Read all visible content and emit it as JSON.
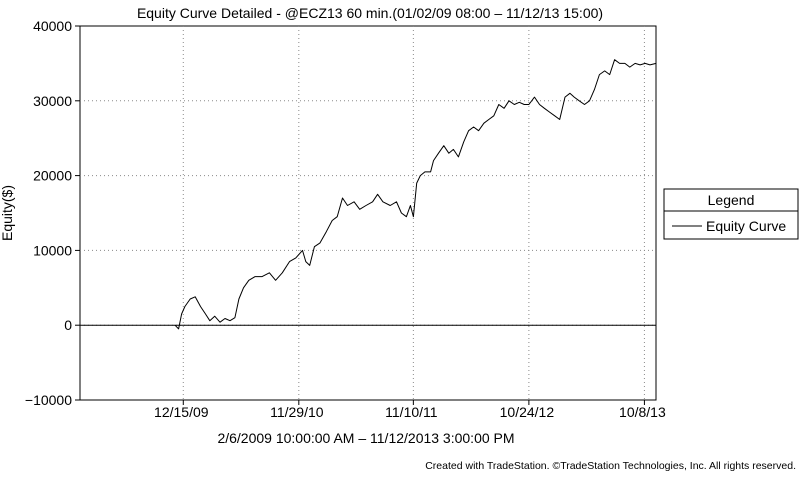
{
  "chart_data": {
    "type": "line",
    "title": "Equity Curve Detailed - @ECZ13 60 min.(01/02/09 08:00 – 11/12/13 15:00)",
    "subtitle": "2/6/2009 10:00:00 AM – 11/12/2013 3:00:00 PM",
    "footer": "Created with TradeStation. ©TradeStation Technologies, Inc. All rights reserved.",
    "xlabel": "",
    "ylabel": "Equity($)",
    "ylim": [
      -10000,
      40000
    ],
    "yticks": [
      -10000,
      0,
      10000,
      20000,
      30000,
      40000
    ],
    "ytick_labels": [
      "−10000",
      "0",
      "10000",
      "20000",
      "30000",
      "40000"
    ],
    "xlim": [
      "2009-02-06",
      "2013-11-12"
    ],
    "xticks": [
      "2009-12-15",
      "2010-11-29",
      "2011-11-10",
      "2012-10-24",
      "2013-10-08"
    ],
    "xtick_labels": [
      "12/15/09",
      "11/29/10",
      "11/10/11",
      "10/24/12",
      "10/8/13"
    ],
    "grid": true,
    "grid_style": "dotted",
    "legend": {
      "title": "Legend",
      "entries": [
        "Equity Curve"
      ],
      "placement": "right"
    },
    "series": [
      {
        "name": "Equity Curve",
        "color": "#000000",
        "points": [
          [
            "2009-11-20",
            0
          ],
          [
            "2009-12-01",
            -500
          ],
          [
            "2009-12-10",
            1500
          ],
          [
            "2009-12-20",
            2500
          ],
          [
            "2010-01-05",
            3500
          ],
          [
            "2010-01-20",
            3800
          ],
          [
            "2010-02-05",
            2500
          ],
          [
            "2010-02-20",
            1500
          ],
          [
            "2010-03-05",
            600
          ],
          [
            "2010-03-20",
            1200
          ],
          [
            "2010-04-05",
            400
          ],
          [
            "2010-04-20",
            900
          ],
          [
            "2010-05-05",
            600
          ],
          [
            "2010-05-20",
            1000
          ],
          [
            "2010-06-01",
            3500
          ],
          [
            "2010-06-15",
            5000
          ],
          [
            "2010-07-01",
            6000
          ],
          [
            "2010-07-20",
            6500
          ],
          [
            "2010-08-10",
            6500
          ],
          [
            "2010-09-01",
            7000
          ],
          [
            "2010-09-20",
            6000
          ],
          [
            "2010-10-10",
            7000
          ],
          [
            "2010-11-01",
            8500
          ],
          [
            "2010-11-20",
            9000
          ],
          [
            "2010-12-10",
            10000
          ],
          [
            "2010-12-20",
            8500
          ],
          [
            "2011-01-01",
            8000
          ],
          [
            "2011-01-15",
            10500
          ],
          [
            "2011-02-01",
            11000
          ],
          [
            "2011-02-20",
            12500
          ],
          [
            "2011-03-10",
            14000
          ],
          [
            "2011-03-25",
            14500
          ],
          [
            "2011-04-10",
            17000
          ],
          [
            "2011-04-25",
            16000
          ],
          [
            "2011-05-15",
            16500
          ],
          [
            "2011-06-01",
            15500
          ],
          [
            "2011-06-20",
            16000
          ],
          [
            "2011-07-10",
            16500
          ],
          [
            "2011-07-25",
            17500
          ],
          [
            "2011-08-10",
            16500
          ],
          [
            "2011-09-01",
            16000
          ],
          [
            "2011-09-20",
            16500
          ],
          [
            "2011-10-05",
            15000
          ],
          [
            "2011-10-20",
            14500
          ],
          [
            "2011-11-01",
            16000
          ],
          [
            "2011-11-10",
            14500
          ],
          [
            "2011-11-20",
            19000
          ],
          [
            "2011-12-01",
            20000
          ],
          [
            "2011-12-15",
            20500
          ],
          [
            "2012-01-01",
            20500
          ],
          [
            "2012-01-10",
            22000
          ],
          [
            "2012-01-25",
            23000
          ],
          [
            "2012-02-10",
            24000
          ],
          [
            "2012-02-25",
            23000
          ],
          [
            "2012-03-10",
            23500
          ],
          [
            "2012-03-25",
            22500
          ],
          [
            "2012-04-10",
            24500
          ],
          [
            "2012-04-25",
            26000
          ],
          [
            "2012-05-10",
            26500
          ],
          [
            "2012-05-25",
            26000
          ],
          [
            "2012-06-10",
            27000
          ],
          [
            "2012-06-25",
            27500
          ],
          [
            "2012-07-10",
            28000
          ],
          [
            "2012-07-25",
            29500
          ],
          [
            "2012-08-10",
            29000
          ],
          [
            "2012-08-25",
            30000
          ],
          [
            "2012-09-10",
            29500
          ],
          [
            "2012-09-25",
            29800
          ],
          [
            "2012-10-10",
            29500
          ],
          [
            "2012-10-24",
            29500
          ],
          [
            "2012-11-10",
            30500
          ],
          [
            "2012-11-25",
            29500
          ],
          [
            "2012-12-10",
            29000
          ],
          [
            "2012-12-25",
            28500
          ],
          [
            "2013-01-10",
            28000
          ],
          [
            "2013-01-25",
            27500
          ],
          [
            "2013-02-10",
            30500
          ],
          [
            "2013-02-25",
            31000
          ],
          [
            "2013-03-10",
            30500
          ],
          [
            "2013-03-25",
            30000
          ],
          [
            "2013-04-10",
            29500
          ],
          [
            "2013-04-25",
            30000
          ],
          [
            "2013-05-10",
            31500
          ],
          [
            "2013-05-25",
            33500
          ],
          [
            "2013-06-10",
            34000
          ],
          [
            "2013-06-25",
            33500
          ],
          [
            "2013-07-10",
            35500
          ],
          [
            "2013-07-25",
            35000
          ],
          [
            "2013-08-10",
            35000
          ],
          [
            "2013-08-25",
            34500
          ],
          [
            "2013-09-10",
            35000
          ],
          [
            "2013-09-25",
            34800
          ],
          [
            "2013-10-10",
            35000
          ],
          [
            "2013-10-25",
            34800
          ],
          [
            "2013-11-12",
            35000
          ]
        ]
      }
    ]
  }
}
